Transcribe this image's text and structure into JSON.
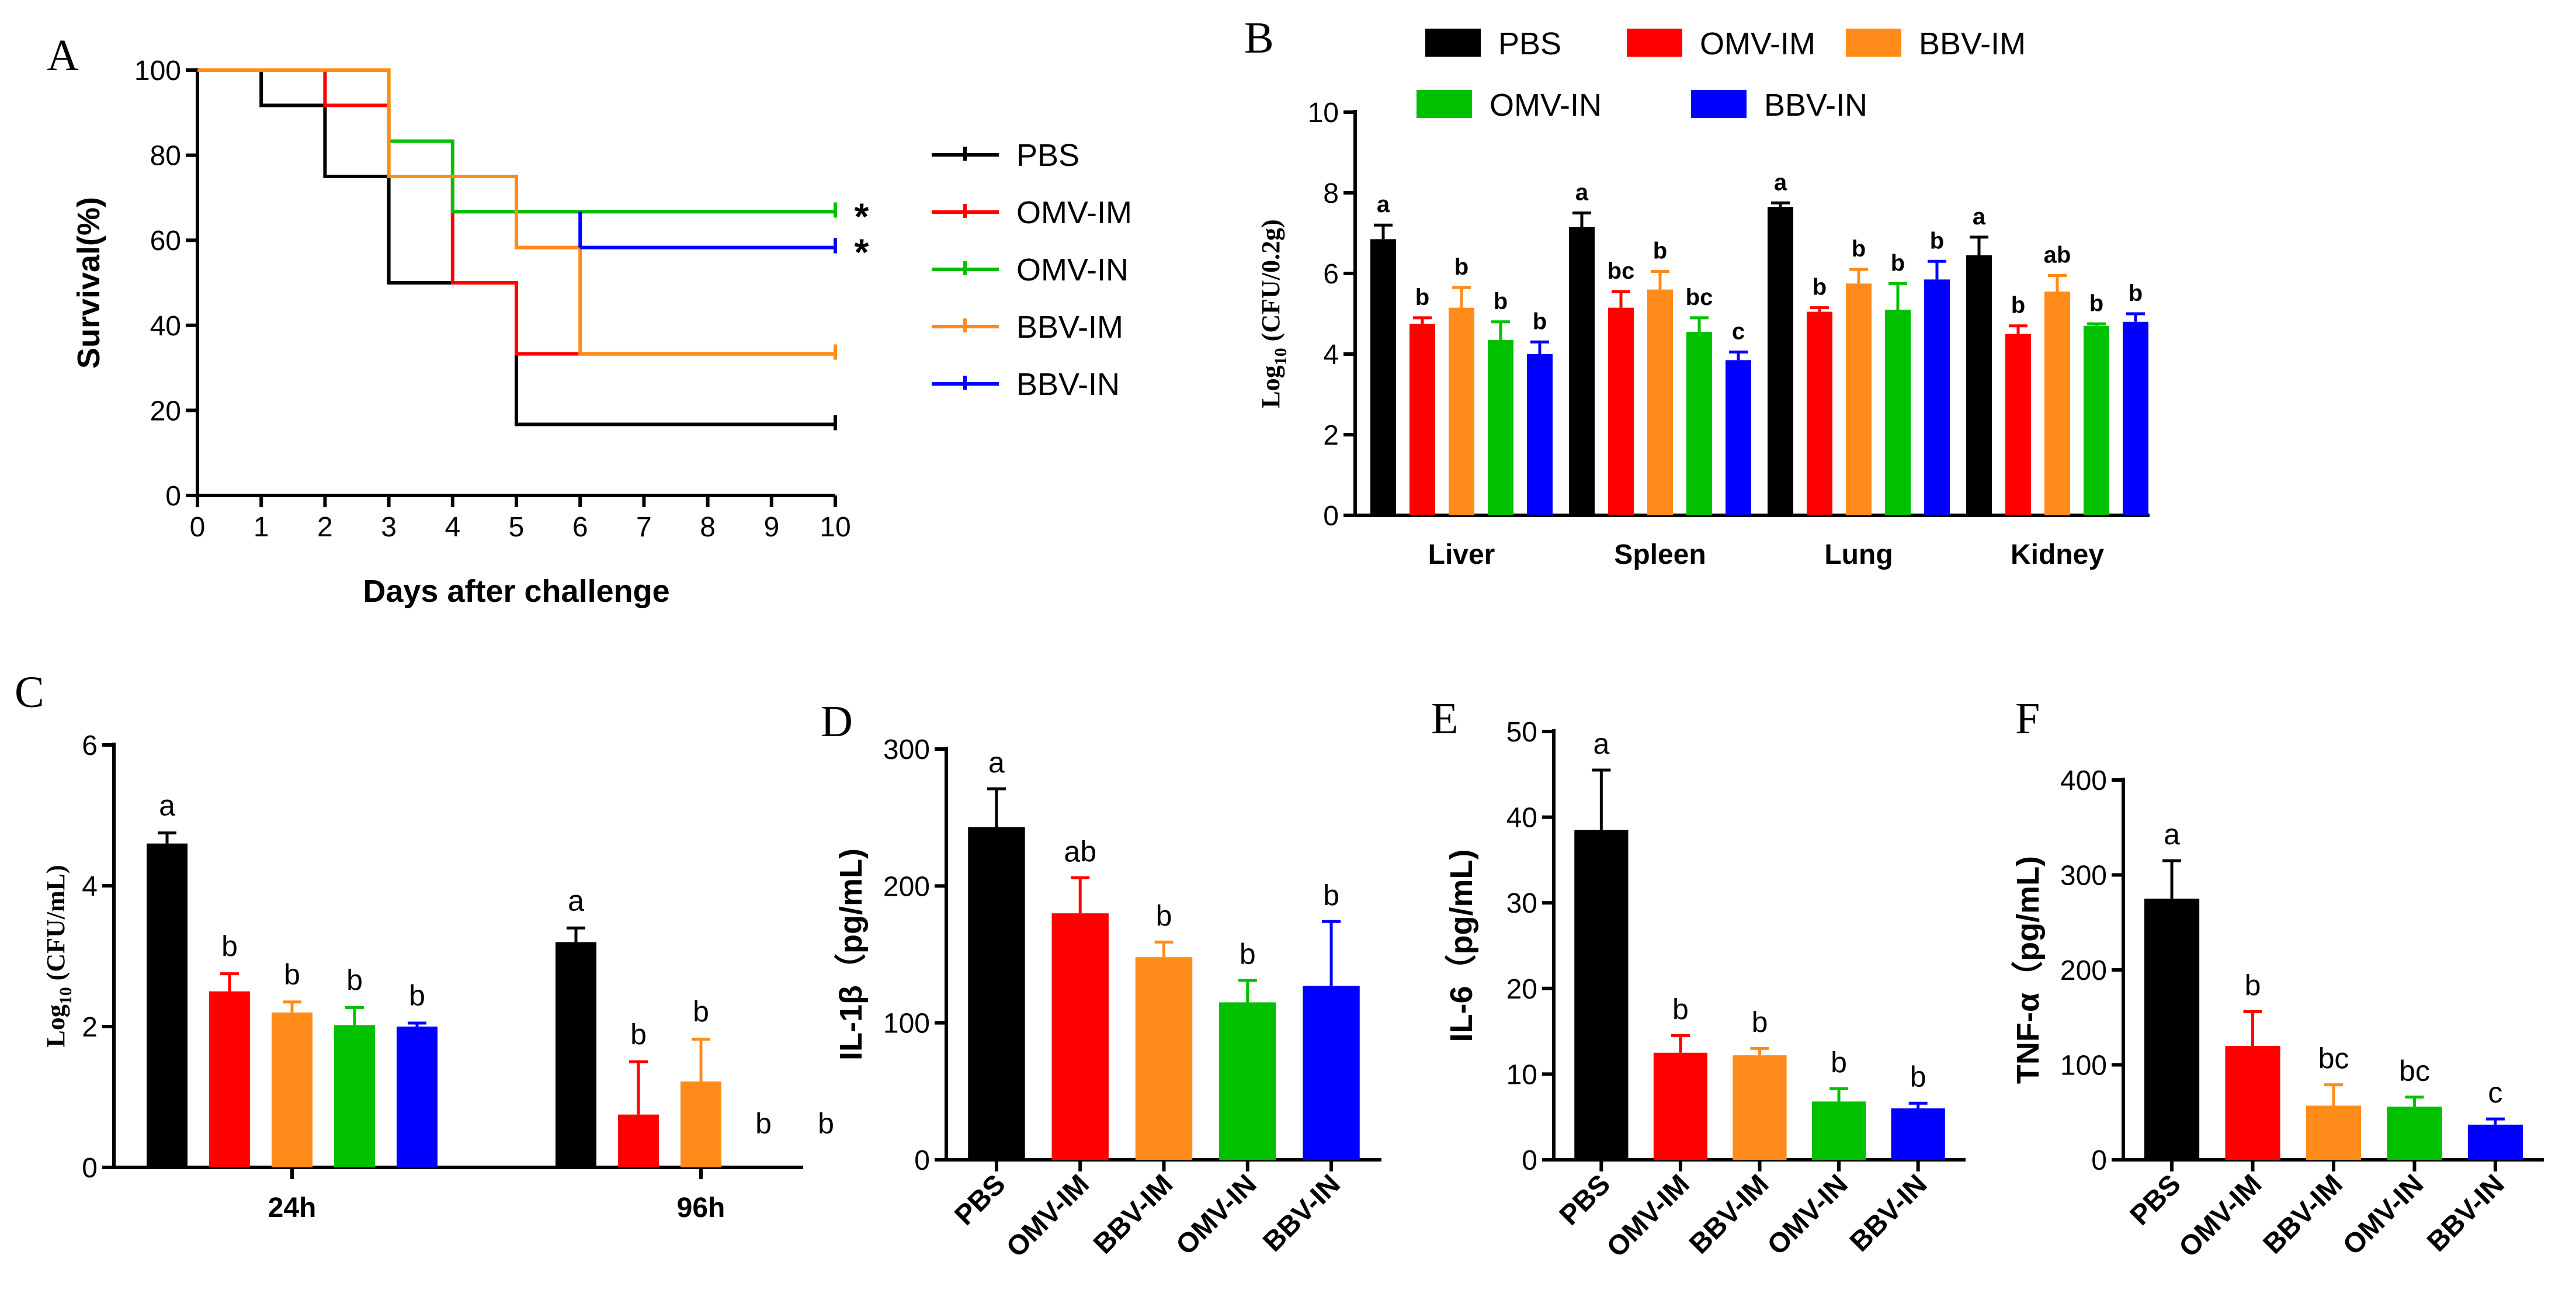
{
  "colors": {
    "PBS": "#000000",
    "OMV-IM": "#ff0000",
    "OMV-IN": "#00c000",
    "BBV-IM": "#ff8c1a",
    "BBV-IN": "#0000ff"
  },
  "panel_letters": {
    "A": "A",
    "B": "B",
    "C": "C",
    "D": "D",
    "E": "E",
    "F": "F"
  },
  "chart_data": [
    {
      "panel": "A",
      "type": "line",
      "step": true,
      "xlabel": "Days after challenge",
      "ylabel": "Survival(%)",
      "xlim": [
        0,
        10
      ],
      "ylim": [
        0,
        100
      ],
      "xticks": [
        "0",
        "1",
        "2",
        "3",
        "4",
        "5",
        "6",
        "7",
        "8",
        "9",
        "10"
      ],
      "yticks": [
        "0",
        "20",
        "40",
        "60",
        "80",
        "100"
      ],
      "series": [
        {
          "name": "PBS",
          "x": [
            0,
            1,
            2,
            3,
            5,
            10
          ],
          "y": [
            100,
            91.7,
            75,
            50,
            16.7,
            16.7
          ]
        },
        {
          "name": "OMV-IM",
          "x": [
            0,
            2,
            3,
            4,
            5,
            10
          ],
          "y": [
            100,
            91.7,
            75,
            50,
            33.3,
            33.3
          ]
        },
        {
          "name": "OMV-IN",
          "x": [
            0,
            3,
            4,
            10
          ],
          "y": [
            100,
            83.3,
            66.7,
            66.7
          ]
        },
        {
          "name": "BBV-IM",
          "x": [
            0,
            3,
            5,
            6,
            10
          ],
          "y": [
            100,
            75,
            58.3,
            33.3,
            33.3
          ]
        },
        {
          "name": "BBV-IN",
          "x": [
            6,
            10
          ],
          "y": [
            58.3,
            58.3
          ]
        }
      ],
      "annotations": [
        {
          "text": "*",
          "series": "OMV-IN"
        },
        {
          "text": "*",
          "series": "BBV-IN"
        }
      ]
    },
    {
      "panel": "B",
      "type": "bar",
      "ylabel": "Log10 (CFU/0.2g)",
      "ylim": [
        0,
        10
      ],
      "yticks": [
        "0",
        "2",
        "4",
        "6",
        "8",
        "10"
      ],
      "categories": [
        "Liver",
        "Spleen",
        "Lung",
        "Kidney"
      ],
      "series": [
        {
          "name": "PBS",
          "values": [
            6.85,
            7.15,
            7.65,
            6.45
          ],
          "errors": [
            0.35,
            0.35,
            0.1,
            0.45
          ],
          "letters": [
            "a",
            "a",
            "a",
            "a"
          ]
        },
        {
          "name": "OMV-IM",
          "values": [
            4.75,
            5.15,
            5.05,
            4.5
          ],
          "errors": [
            0.15,
            0.4,
            0.1,
            0.2
          ],
          "letters": [
            "b",
            "bc",
            "b",
            "b"
          ]
        },
        {
          "name": "BBV-IM",
          "values": [
            5.15,
            5.6,
            5.75,
            5.55
          ],
          "errors": [
            0.5,
            0.45,
            0.35,
            0.4
          ],
          "letters": [
            "b",
            "b",
            "b",
            "ab"
          ]
        },
        {
          "name": "OMV-IN",
          "values": [
            4.35,
            4.55,
            5.1,
            4.7
          ],
          "errors": [
            0.45,
            0.35,
            0.65,
            0.05
          ],
          "letters": [
            "b",
            "bc",
            "b",
            "b"
          ]
        },
        {
          "name": "BBV-IN",
          "values": [
            4.0,
            3.85,
            5.85,
            4.8
          ],
          "errors": [
            0.3,
            0.2,
            0.45,
            0.2
          ],
          "letters": [
            "b",
            "c",
            "b",
            "b"
          ]
        }
      ]
    },
    {
      "panel": "C",
      "type": "bar",
      "ylabel": "Log10 (CFU/mL)",
      "ylim": [
        0,
        6
      ],
      "yticks": [
        "0",
        "2",
        "4",
        "6"
      ],
      "categories": [
        "24h",
        "96h"
      ],
      "series": [
        {
          "name": "PBS",
          "values": [
            4.6,
            3.2
          ],
          "errors": [
            0.15,
            0.2
          ],
          "letters": [
            "a",
            "a"
          ]
        },
        {
          "name": "OMV-IM",
          "values": [
            2.5,
            0.75
          ],
          "errors": [
            0.25,
            0.75
          ],
          "letters": [
            "b",
            "b"
          ]
        },
        {
          "name": "BBV-IM",
          "values": [
            2.2,
            1.22
          ],
          "errors": [
            0.15,
            0.6
          ],
          "letters": [
            "b",
            "b"
          ]
        },
        {
          "name": "OMV-IN",
          "values": [
            2.02,
            0
          ],
          "errors": [
            0.25,
            0
          ],
          "letters": [
            "b",
            "b"
          ]
        },
        {
          "name": "BBV-IN",
          "values": [
            2.0,
            0
          ],
          "errors": [
            0.05,
            0
          ],
          "letters": [
            "b",
            "b"
          ]
        }
      ]
    },
    {
      "panel": "D",
      "type": "bar",
      "ylabel": "IL-1β（pg/mL)",
      "ylim": [
        0,
        300
      ],
      "yticks": [
        "0",
        "100",
        "200",
        "300"
      ],
      "categories": [
        "PBS",
        "OMV-IM",
        "BBV-IM",
        "OMV-IN",
        "BBV-IN"
      ],
      "values": [
        243,
        180,
        148,
        115,
        127
      ],
      "errors": [
        28,
        26,
        11,
        16,
        47
      ],
      "letters": [
        "a",
        "ab",
        "b",
        "b",
        "b"
      ]
    },
    {
      "panel": "E",
      "type": "bar",
      "ylabel": "IL-6（pg/mL)",
      "ylim": [
        0,
        50
      ],
      "yticks": [
        "0",
        "10",
        "20",
        "30",
        "40",
        "50"
      ],
      "categories": [
        "PBS",
        "OMV-IM",
        "BBV-IM",
        "OMV-IN",
        "BBV-IN"
      ],
      "values": [
        38.5,
        12.5,
        12.2,
        6.8,
        6.0
      ],
      "errors": [
        7.0,
        2.0,
        0.8,
        1.5,
        0.6
      ],
      "letters": [
        "a",
        "b",
        "b",
        "b",
        "b"
      ]
    },
    {
      "panel": "F",
      "type": "bar",
      "ylabel": "TNF-α（pg/mL)",
      "ylim": [
        0,
        400
      ],
      "yticks": [
        "0",
        "100",
        "200",
        "300",
        "400"
      ],
      "categories": [
        "PBS",
        "OMV-IM",
        "BBV-IM",
        "OMV-IN",
        "BBV-IN"
      ],
      "values": [
        275,
        120,
        57,
        56,
        37
      ],
      "errors": [
        40,
        36,
        22,
        10,
        6
      ],
      "letters": [
        "a",
        "b",
        "bc",
        "bc",
        "c"
      ]
    }
  ],
  "legend_A": [
    "PBS",
    "OMV-IM",
    "OMV-IN",
    "BBV-IM",
    "BBV-IN"
  ],
  "legend_B": [
    "PBS",
    "OMV-IM",
    "BBV-IM",
    "OMV-IN",
    "BBV-IN"
  ]
}
